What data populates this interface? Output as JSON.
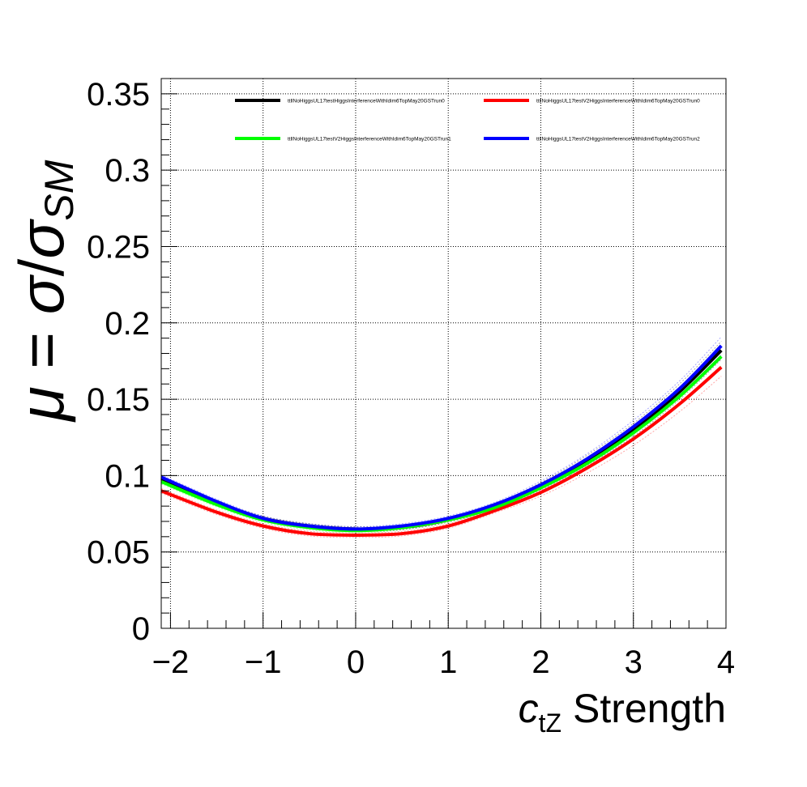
{
  "chart_data": {
    "type": "line",
    "title": "",
    "xlabel": {
      "symbol": "c",
      "subscript": "tZ",
      "rest": " Strength"
    },
    "ylabel": {
      "mu": "μ",
      "eq": " = ",
      "sigma": "σ",
      "slash": "/",
      "sigma2": "σ",
      "sub": "SM"
    },
    "xlim": [
      -2.1,
      4.0
    ],
    "ylim": [
      0,
      0.36
    ],
    "x_ticks": [
      "−2",
      "−1",
      "0",
      "1",
      "2",
      "3",
      "4"
    ],
    "x_tick_values": [
      -2,
      -1,
      0,
      1,
      2,
      3,
      4
    ],
    "y_ticks": [
      "0",
      "0.05",
      "0.1",
      "0.15",
      "0.2",
      "0.25",
      "0.3",
      "0.35"
    ],
    "y_tick_values": [
      0,
      0.05,
      0.1,
      0.15,
      0.2,
      0.25,
      0.3,
      0.35
    ],
    "grid": true,
    "legend_position": "top",
    "x": [
      -2.1,
      -1.5,
      -1.0,
      -0.5,
      0.0,
      0.5,
      1.0,
      1.5,
      2.0,
      2.5,
      3.0,
      3.5,
      3.95
    ],
    "series": [
      {
        "name": "ttllNoHiggsUL17testHiggsInterferenceWithIdim6TopMay20GSTrun0",
        "color": "#000000",
        "values": [
          0.098,
          0.082,
          0.072,
          0.067,
          0.065,
          0.066,
          0.071,
          0.08,
          0.093,
          0.11,
          0.13,
          0.155,
          0.182
        ]
      },
      {
        "name": "ttllNoHiggsUL17testV2HiggsInterferenceWithIdim6TopMay20GSTrun0",
        "color": "#ff0000",
        "values": [
          0.09,
          0.076,
          0.067,
          0.062,
          0.061,
          0.062,
          0.067,
          0.077,
          0.089,
          0.105,
          0.124,
          0.147,
          0.171
        ]
      },
      {
        "name": "ttllNoHiggsUL17testV2HiggsInterferenceWithIdim6TopMay20GSTrun1",
        "color": "#00ff00",
        "values": [
          0.096,
          0.081,
          0.071,
          0.066,
          0.064,
          0.066,
          0.071,
          0.079,
          0.092,
          0.108,
          0.128,
          0.152,
          0.178
        ]
      },
      {
        "name": "ttllNoHiggsUL17testV2HiggsInterferenceWithIdim6TopMay20GSTrun2",
        "color": "#0000ff",
        "values": [
          0.099,
          0.083,
          0.072,
          0.067,
          0.065,
          0.067,
          0.072,
          0.081,
          0.094,
          0.111,
          0.132,
          0.157,
          0.185
        ]
      }
    ]
  }
}
